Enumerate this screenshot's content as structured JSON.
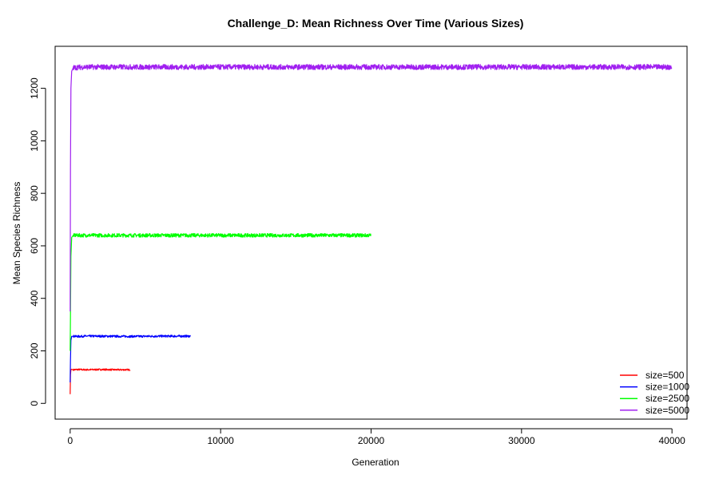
{
  "chart_data": {
    "type": "line",
    "title": "Challenge_D: Mean Richness Over Time (Various Sizes)",
    "xlabel": "Generation",
    "ylabel": "Mean Species Richness",
    "xlim": [
      -1000,
      41000
    ],
    "ylim": [
      -60,
      1360
    ],
    "xticks": [
      "0",
      "10000",
      "20000",
      "30000",
      "40000"
    ],
    "xtick_values": [
      0,
      10000,
      20000,
      30000,
      40000
    ],
    "yticks": [
      "0",
      "200",
      "400",
      "600",
      "800",
      "1000",
      "1200"
    ],
    "ytick_values": [
      0,
      200,
      400,
      600,
      800,
      1000,
      1200
    ],
    "grid": false,
    "legend_position": "bottom-right",
    "series": [
      {
        "name": "size=500",
        "color": "#ff0000",
        "x": [
          0,
          20,
          50,
          100,
          200,
          500,
          1000,
          2000,
          3000,
          4000
        ],
        "y": [
          35,
          110,
          128,
          130,
          128,
          129,
          128,
          129,
          128,
          128
        ],
        "noise": 3
      },
      {
        "name": "size=1000",
        "color": "#0000ff",
        "x": [
          0,
          20,
          50,
          100,
          200,
          500,
          1000,
          2000,
          4000,
          6000,
          8000
        ],
        "y": [
          80,
          165,
          240,
          255,
          256,
          255,
          256,
          256,
          255,
          256,
          256
        ],
        "noise": 4
      },
      {
        "name": "size=2500",
        "color": "#00ff00",
        "x": [
          0,
          20,
          50,
          100,
          200,
          500,
          1000,
          5000,
          10000,
          15000,
          20000
        ],
        "y": [
          200,
          335,
          560,
          632,
          640,
          640,
          640,
          640,
          640,
          640,
          640
        ],
        "noise": 7
      },
      {
        "name": "size=5000",
        "color": "#a020f0",
        "x": [
          0,
          20,
          50,
          100,
          200,
          500,
          1000,
          10000,
          20000,
          30000,
          40000
        ],
        "y": [
          350,
          900,
          1200,
          1265,
          1278,
          1280,
          1281,
          1281,
          1281,
          1281,
          1281
        ],
        "noise": 10
      }
    ]
  }
}
